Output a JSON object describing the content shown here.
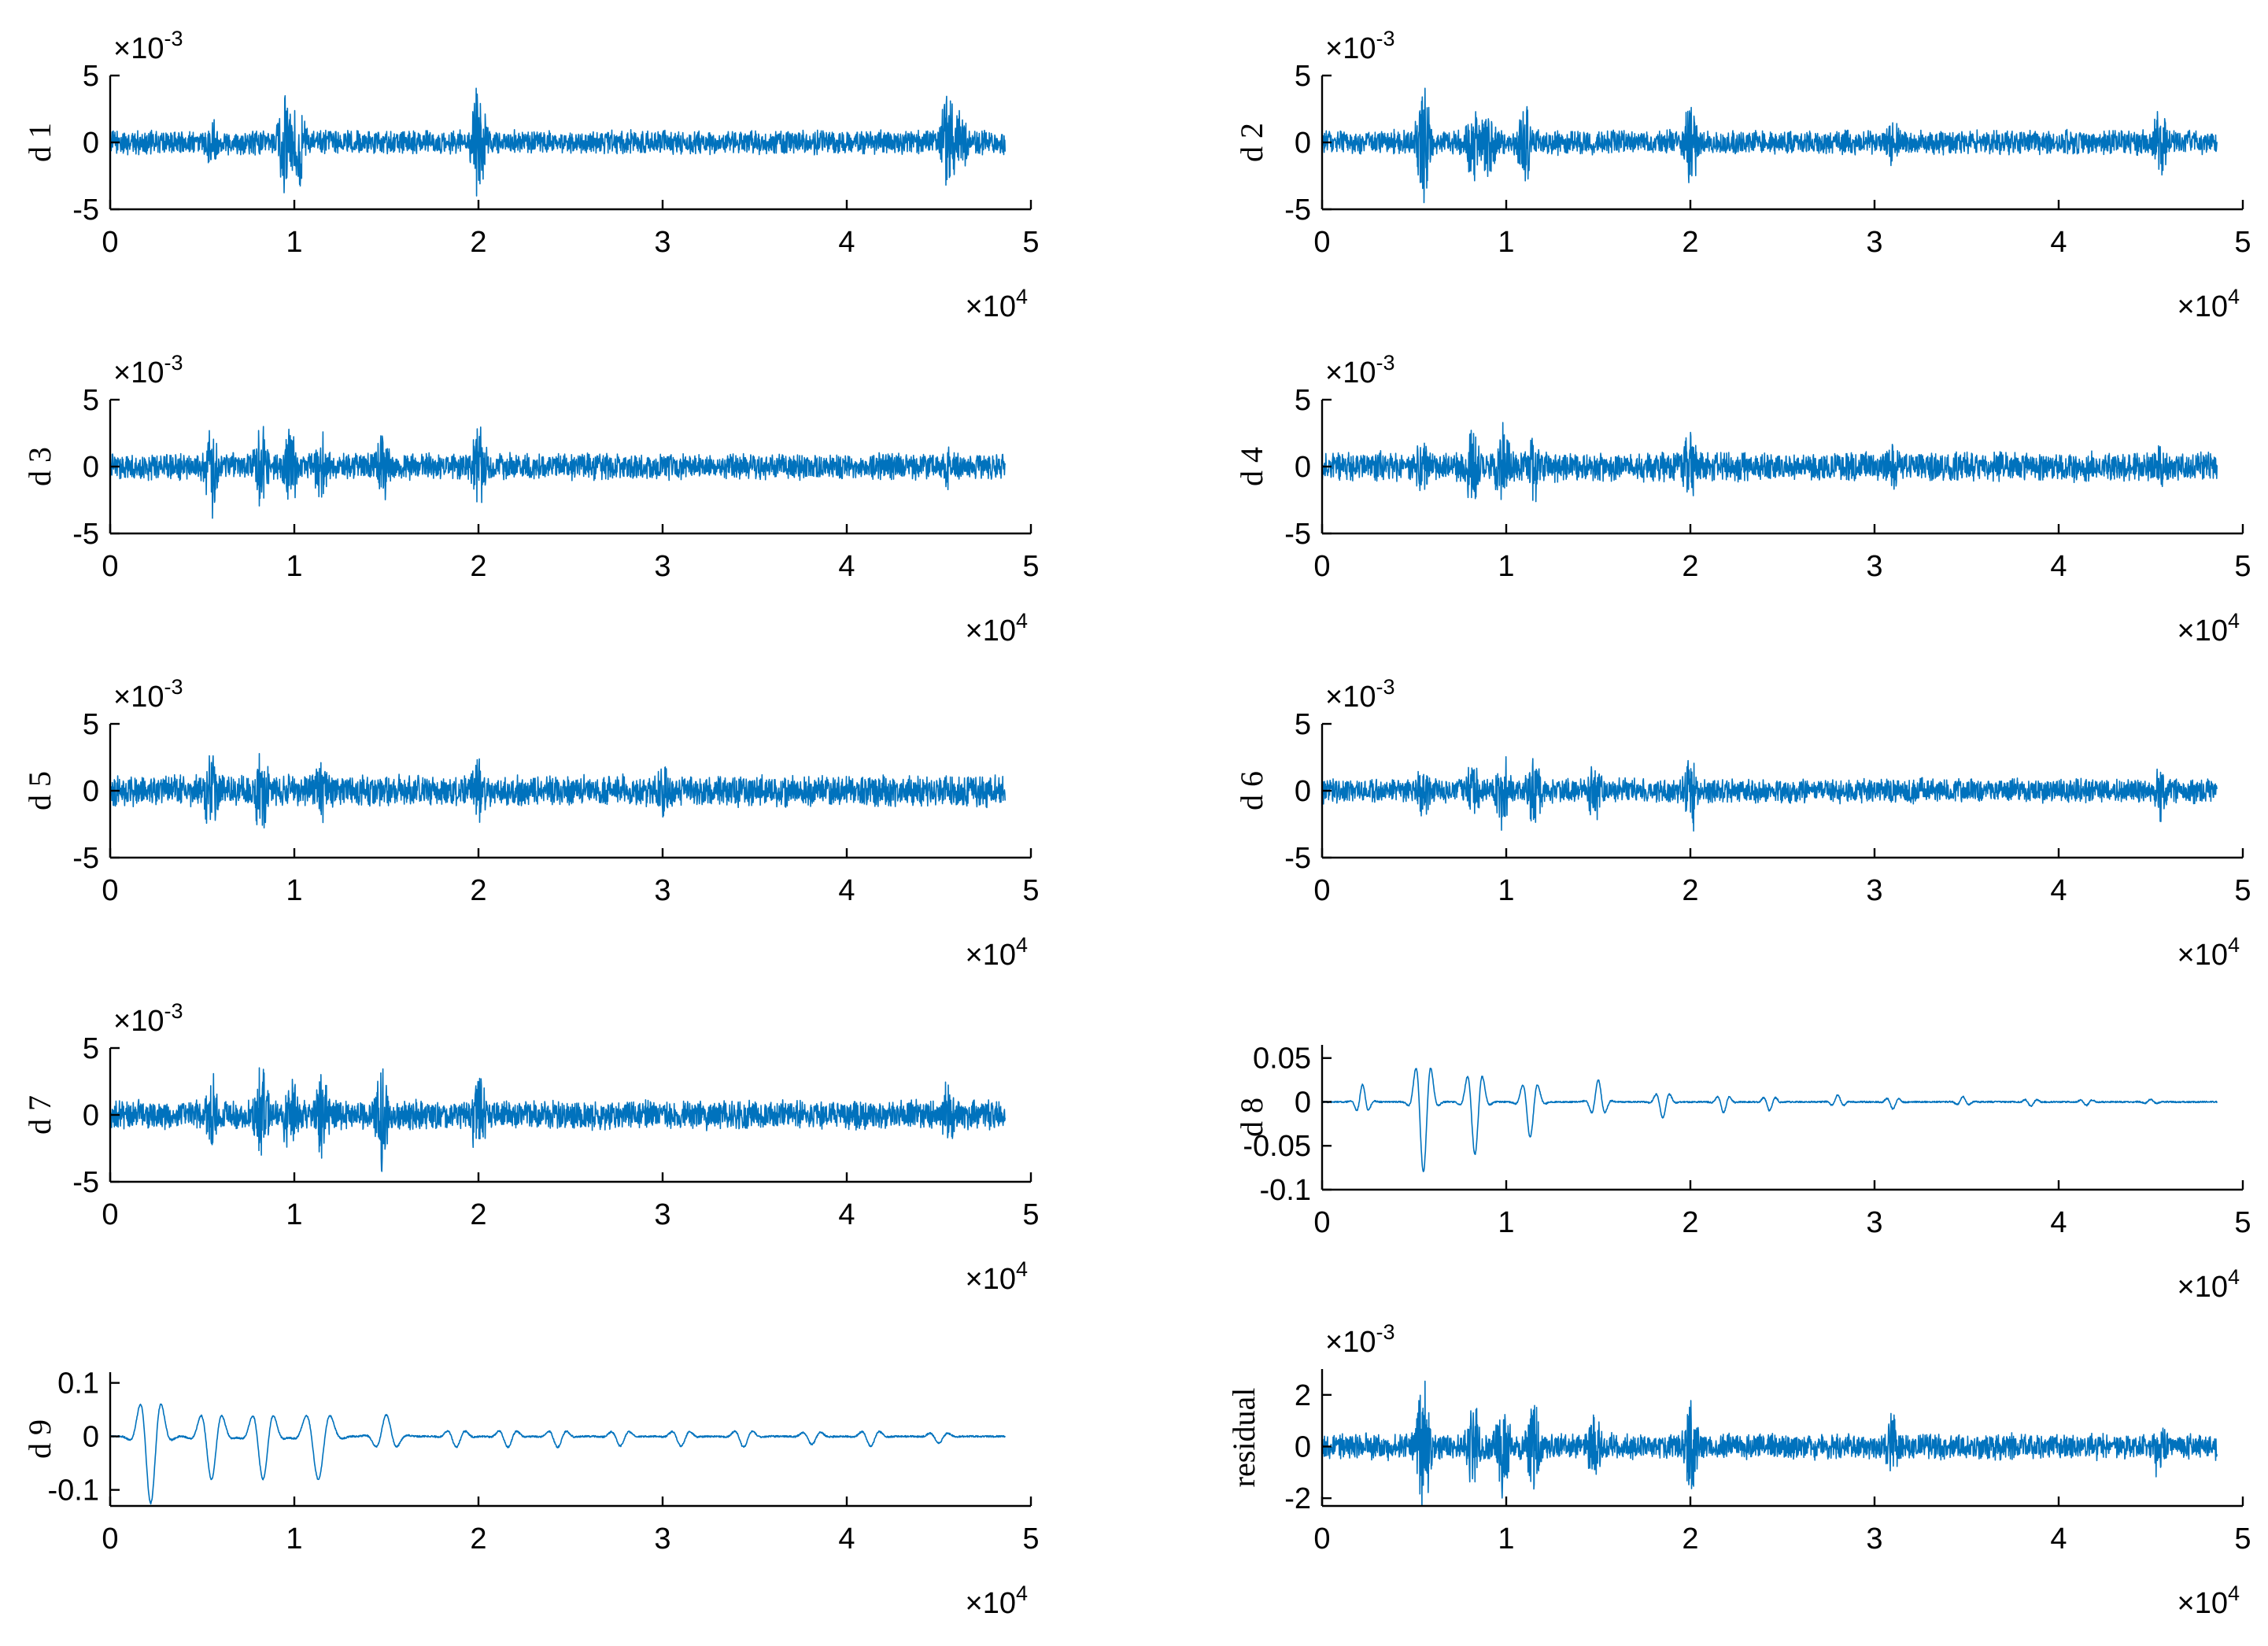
{
  "figure": {
    "series_color": "#0072BD",
    "axis_color": "#000000",
    "background": "#ffffff"
  },
  "chart_data": [
    {
      "type": "line",
      "ylabel": "d 1",
      "x_range": [
        0,
        48600
      ],
      "xlim": [
        0,
        50000
      ],
      "xticks": [
        "0",
        "1",
        "2",
        "3",
        "4",
        "5"
      ],
      "x_multiplier": "×10",
      "x_exponent": "4",
      "yticks": [
        "-5",
        "0",
        "5"
      ],
      "y_multiplier": "×10",
      "y_exponent": "-3",
      "ylim": [
        -5,
        5
      ],
      "noise_amplitude": 1.0,
      "bursts": [
        [
          5500,
          2.2
        ],
        [
          9500,
          4.8
        ],
        [
          10200,
          4.0
        ],
        [
          20000,
          5.0
        ],
        [
          45500,
          4.6
        ],
        [
          46200,
          3.0
        ]
      ]
    },
    {
      "type": "line",
      "ylabel": "d 2",
      "x_range": [
        0,
        48600
      ],
      "xlim": [
        0,
        50000
      ],
      "xticks": [
        "0",
        "1",
        "2",
        "3",
        "4",
        "5"
      ],
      "x_multiplier": "×10",
      "x_exponent": "4",
      "yticks": [
        "-5",
        "0",
        "5"
      ],
      "y_multiplier": "×10",
      "y_exponent": "-3",
      "ylim": [
        -5,
        5
      ],
      "noise_amplitude": 1.0,
      "bursts": [
        [
          5500,
          5.0
        ],
        [
          8200,
          3.6
        ],
        [
          9000,
          3.6
        ],
        [
          11000,
          3.5
        ],
        [
          20000,
          3.8
        ],
        [
          31000,
          2.6
        ],
        [
          45500,
          3.0
        ]
      ]
    },
    {
      "type": "line",
      "ylabel": "d 3",
      "x_range": [
        0,
        48600
      ],
      "xlim": [
        0,
        50000
      ],
      "xticks": [
        "0",
        "1",
        "2",
        "3",
        "4",
        "5"
      ],
      "x_multiplier": "×10",
      "x_exponent": "4",
      "yticks": [
        "-5",
        "0",
        "5"
      ],
      "y_multiplier": "×10",
      "y_exponent": "-3",
      "ylim": [
        -5,
        5
      ],
      "noise_amplitude": 1.1,
      "bursts": [
        [
          5500,
          4.0
        ],
        [
          8200,
          3.6
        ],
        [
          9800,
          3.6
        ],
        [
          11500,
          3.4
        ],
        [
          14800,
          3.4
        ],
        [
          20000,
          3.8
        ],
        [
          45500,
          2.0
        ]
      ]
    },
    {
      "type": "line",
      "ylabel": "d 4",
      "x_range": [
        0,
        48600
      ],
      "xlim": [
        0,
        50000
      ],
      "xticks": [
        "0",
        "1",
        "2",
        "3",
        "4",
        "5"
      ],
      "x_multiplier": "×10",
      "x_exponent": "4",
      "yticks": [
        "-5",
        "0",
        "5"
      ],
      "y_multiplier": "×10",
      "y_exponent": "-3",
      "ylim": [
        -5,
        5
      ],
      "noise_amplitude": 1.2,
      "bursts": [
        [
          5500,
          3.0
        ],
        [
          8200,
          4.0
        ],
        [
          9800,
          3.6
        ],
        [
          11500,
          3.0
        ],
        [
          20000,
          3.4
        ],
        [
          31000,
          2.8
        ],
        [
          45500,
          2.2
        ]
      ]
    },
    {
      "type": "line",
      "ylabel": "d 5",
      "x_range": [
        0,
        48600
      ],
      "xlim": [
        0,
        50000
      ],
      "xticks": [
        "0",
        "1",
        "2",
        "3",
        "4",
        "5"
      ],
      "x_multiplier": "×10",
      "x_exponent": "4",
      "yticks": [
        "-5",
        "0",
        "5"
      ],
      "y_multiplier": "×10",
      "y_exponent": "-3",
      "ylim": [
        -5,
        5
      ],
      "noise_amplitude": 1.3,
      "bursts": [
        [
          5500,
          3.8
        ],
        [
          8200,
          4.0
        ],
        [
          11500,
          2.8
        ],
        [
          20000,
          2.8
        ],
        [
          30000,
          2.6
        ]
      ]
    },
    {
      "type": "line",
      "ylabel": "d 6",
      "x_range": [
        0,
        48600
      ],
      "xlim": [
        0,
        50000
      ],
      "xticks": [
        "0",
        "1",
        "2",
        "3",
        "4",
        "5"
      ],
      "x_multiplier": "×10",
      "x_exponent": "4",
      "yticks": [
        "-5",
        "0",
        "5"
      ],
      "y_multiplier": "×10",
      "y_exponent": "-3",
      "ylim": [
        -5,
        5
      ],
      "noise_amplitude": 1.0,
      "bursts": [
        [
          5500,
          2.6
        ],
        [
          8200,
          2.8
        ],
        [
          9800,
          3.4
        ],
        [
          11500,
          3.4
        ],
        [
          14800,
          3.0
        ],
        [
          20000,
          3.6
        ],
        [
          45500,
          2.6
        ]
      ]
    },
    {
      "type": "line",
      "ylabel": "d 7",
      "x_range": [
        0,
        48600
      ],
      "xlim": [
        0,
        50000
      ],
      "xticks": [
        "0",
        "1",
        "2",
        "3",
        "4",
        "5"
      ],
      "x_multiplier": "×10",
      "x_exponent": "4",
      "yticks": [
        "-5",
        "0",
        "5"
      ],
      "y_multiplier": "×10",
      "y_exponent": "-3",
      "ylim": [
        -5,
        5
      ],
      "noise_amplitude": 1.2,
      "bursts": [
        [
          5500,
          3.5
        ],
        [
          8200,
          4.2
        ],
        [
          9800,
          3.8
        ],
        [
          11500,
          3.6
        ],
        [
          14800,
          4.5
        ],
        [
          20000,
          4.0
        ],
        [
          45500,
          3.0
        ]
      ]
    },
    {
      "type": "line",
      "ylabel": "d 8",
      "x_range": [
        0,
        48600
      ],
      "xlim": [
        0,
        50000
      ],
      "xticks": [
        "0",
        "1",
        "2",
        "3",
        "4",
        "5"
      ],
      "x_multiplier": "×10",
      "x_exponent": "4",
      "yticks": [
        "-0.1",
        "-0.05",
        "0",
        "0.05"
      ],
      "ylim": [
        -0.1,
        0.065
      ],
      "noise_amplitude": 0.0008,
      "transients": [
        [
          2200,
          0.02,
          400
        ],
        [
          5500,
          -0.08,
          500
        ],
        [
          8300,
          -0.06,
          500
        ],
        [
          11300,
          -0.04,
          500
        ],
        [
          15000,
          0.025,
          450
        ],
        [
          18500,
          -0.018,
          450
        ],
        [
          21800,
          -0.012,
          400
        ],
        [
          24300,
          -0.01,
          400
        ],
        [
          28000,
          0.008,
          400
        ],
        [
          31000,
          -0.008,
          400
        ],
        [
          34800,
          0.006,
          400
        ],
        [
          38500,
          -0.005,
          400
        ],
        [
          41500,
          -0.004,
          400
        ],
        [
          45000,
          0.003,
          400
        ]
      ]
    },
    {
      "type": "line",
      "ylabel": "d 9",
      "x_range": [
        0,
        48600
      ],
      "xlim": [
        0,
        50000
      ],
      "xticks": [
        "0",
        "1",
        "2",
        "3",
        "4",
        "5"
      ],
      "x_multiplier": "×10",
      "x_exponent": "4",
      "yticks": [
        "-0.1",
        "0",
        "0.1"
      ],
      "ylim": [
        -0.13,
        0.12
      ],
      "noise_amplitude": 0.0015,
      "transients": [
        [
          2200,
          -0.125,
          700
        ],
        [
          5500,
          -0.08,
          700
        ],
        [
          8300,
          -0.08,
          700
        ],
        [
          11300,
          -0.08,
          800
        ],
        [
          15000,
          0.04,
          700
        ],
        [
          18800,
          -0.02,
          600
        ],
        [
          21600,
          -0.02,
          600
        ],
        [
          24300,
          -0.02,
          600
        ],
        [
          27700,
          -0.018,
          600
        ],
        [
          31000,
          -0.018,
          600
        ],
        [
          34400,
          -0.02,
          600
        ],
        [
          38100,
          -0.015,
          600
        ],
        [
          41300,
          -0.018,
          600
        ],
        [
          45000,
          -0.012,
          600
        ]
      ]
    },
    {
      "type": "line",
      "ylabel": "residual",
      "x_range": [
        0,
        48600
      ],
      "xlim": [
        0,
        50000
      ],
      "xticks": [
        "0",
        "1",
        "2",
        "3",
        "4",
        "5"
      ],
      "x_multiplier": "×10",
      "x_exponent": "4",
      "yticks": [
        "-2",
        "0",
        "2"
      ],
      "y_multiplier": "×10",
      "y_exponent": "-3",
      "ylim": [
        -2.3,
        3.0
      ],
      "noise_amplitude": 0.55,
      "bursts": [
        [
          5500,
          2.8
        ],
        [
          8200,
          2.0
        ],
        [
          9800,
          2.2
        ],
        [
          11500,
          2.2
        ],
        [
          14800,
          1.6
        ],
        [
          20000,
          2.2
        ],
        [
          31000,
          1.5
        ],
        [
          45500,
          1.5
        ]
      ]
    }
  ]
}
